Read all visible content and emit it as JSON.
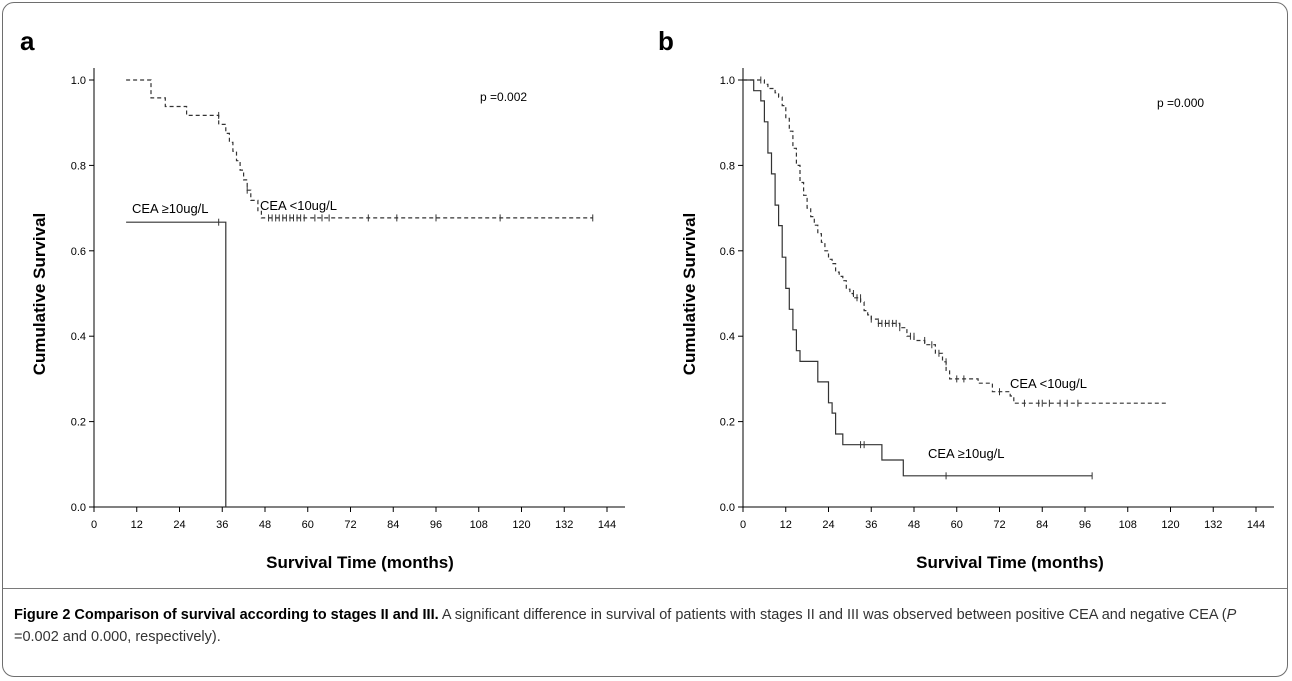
{
  "chart_data": [
    {
      "type": "line",
      "panel_label": "a",
      "annotation": "p =0.002",
      "xlabel": "Survival Time (months)",
      "ylabel": "Cumulative Survival",
      "xlim": [
        0,
        150
      ],
      "ylim": [
        0,
        1.05
      ],
      "xticks": [
        0,
        12,
        24,
        36,
        48,
        60,
        72,
        84,
        96,
        108,
        120,
        132,
        144
      ],
      "yticks": [
        "0.0",
        "0.2",
        "0.4",
        "0.6",
        "0.8",
        "1.0"
      ],
      "series": [
        {
          "name": "CEA <10ug/L",
          "style": "dashed",
          "points": [
            [
              9,
              1.0
            ],
            [
              16,
              1.0
            ],
            [
              16,
              0.958
            ],
            [
              20,
              0.958
            ],
            [
              20,
              0.938
            ],
            [
              26,
              0.938
            ],
            [
              26,
              0.917
            ],
            [
              35,
              0.917
            ],
            [
              35,
              0.896
            ],
            [
              37,
              0.896
            ],
            [
              37,
              0.875
            ],
            [
              38,
              0.875
            ],
            [
              38,
              0.854
            ],
            [
              39,
              0.854
            ],
            [
              39,
              0.833
            ],
            [
              40,
              0.833
            ],
            [
              40,
              0.811
            ],
            [
              41,
              0.811
            ],
            [
              41,
              0.789
            ],
            [
              42,
              0.789
            ],
            [
              42,
              0.766
            ],
            [
              43,
              0.766
            ],
            [
              43,
              0.742
            ],
            [
              44,
              0.742
            ],
            [
              44,
              0.718
            ],
            [
              46,
              0.718
            ],
            [
              46,
              0.694
            ],
            [
              47,
              0.694
            ],
            [
              47,
              0.677
            ],
            [
              140,
              0.677
            ]
          ],
          "censored": [
            [
              35,
              0.917
            ],
            [
              43,
              0.742
            ],
            [
              49,
              0.677
            ],
            [
              50,
              0.677
            ],
            [
              51,
              0.677
            ],
            [
              52,
              0.677
            ],
            [
              53,
              0.677
            ],
            [
              54,
              0.677
            ],
            [
              55,
              0.677
            ],
            [
              56,
              0.677
            ],
            [
              57,
              0.677
            ],
            [
              58,
              0.677
            ],
            [
              59,
              0.677
            ],
            [
              62,
              0.677
            ],
            [
              64,
              0.677
            ],
            [
              66,
              0.677
            ],
            [
              77,
              0.677
            ],
            [
              85,
              0.677
            ],
            [
              96,
              0.677
            ],
            [
              114,
              0.677
            ],
            [
              140,
              0.677
            ]
          ]
        },
        {
          "name": "CEA ≥10ug/L",
          "style": "solid",
          "points": [
            [
              9,
              0.667
            ],
            [
              37,
              0.667
            ],
            [
              37,
              0.0
            ]
          ],
          "censored": [
            [
              35,
              0.667
            ]
          ]
        }
      ]
    },
    {
      "type": "line",
      "panel_label": "b",
      "annotation": "p =0.000",
      "xlabel": "Survival Time (months)",
      "ylabel": "Cumulative Survival",
      "xlim": [
        0,
        150
      ],
      "ylim": [
        0,
        1.05
      ],
      "xticks": [
        0,
        12,
        24,
        36,
        48,
        60,
        72,
        84,
        96,
        108,
        120,
        132,
        144
      ],
      "yticks": [
        "0.0",
        "0.2",
        "0.4",
        "0.6",
        "0.8",
        "1.0"
      ],
      "series": [
        {
          "name": "CEA <10ug/L",
          "style": "dashed",
          "points": [
            [
              0,
              1.0
            ],
            [
              6,
              1.0
            ],
            [
              6,
              0.99
            ],
            [
              7,
              0.99
            ],
            [
              7,
              0.98
            ],
            [
              9,
              0.98
            ],
            [
              9,
              0.97
            ],
            [
              10,
              0.97
            ],
            [
              10,
              0.96
            ],
            [
              11,
              0.96
            ],
            [
              11,
              0.94
            ],
            [
              12,
              0.94
            ],
            [
              12,
              0.91
            ],
            [
              13,
              0.91
            ],
            [
              13,
              0.88
            ],
            [
              14,
              0.88
            ],
            [
              14,
              0.84
            ],
            [
              15,
              0.84
            ],
            [
              15,
              0.8
            ],
            [
              16,
              0.8
            ],
            [
              16,
              0.76
            ],
            [
              17,
              0.76
            ],
            [
              17,
              0.73
            ],
            [
              18,
              0.73
            ],
            [
              18,
              0.7
            ],
            [
              19,
              0.7
            ],
            [
              19,
              0.68
            ],
            [
              20,
              0.68
            ],
            [
              20,
              0.66
            ],
            [
              21,
              0.66
            ],
            [
              21,
              0.64
            ],
            [
              22,
              0.64
            ],
            [
              22,
              0.62
            ],
            [
              23,
              0.62
            ],
            [
              23,
              0.6
            ],
            [
              24,
              0.6
            ],
            [
              24,
              0.58
            ],
            [
              25,
              0.58
            ],
            [
              25,
              0.57
            ],
            [
              26,
              0.57
            ],
            [
              26,
              0.55
            ],
            [
              27,
              0.55
            ],
            [
              27,
              0.54
            ],
            [
              28,
              0.54
            ],
            [
              28,
              0.53
            ],
            [
              29,
              0.53
            ],
            [
              29,
              0.51
            ],
            [
              30,
              0.51
            ],
            [
              30,
              0.5
            ],
            [
              31,
              0.5
            ],
            [
              31,
              0.49
            ],
            [
              33,
              0.49
            ],
            [
              33,
              0.48
            ],
            [
              34,
              0.48
            ],
            [
              34,
              0.46
            ],
            [
              35,
              0.46
            ],
            [
              35,
              0.45
            ],
            [
              36,
              0.45
            ],
            [
              36,
              0.44
            ],
            [
              38,
              0.44
            ],
            [
              38,
              0.43
            ],
            [
              44,
              0.43
            ],
            [
              44,
              0.42
            ],
            [
              46,
              0.42
            ],
            [
              46,
              0.4
            ],
            [
              48,
              0.4
            ],
            [
              48,
              0.39
            ],
            [
              51,
              0.39
            ],
            [
              51,
              0.38
            ],
            [
              54,
              0.38
            ],
            [
              54,
              0.36
            ],
            [
              56,
              0.36
            ],
            [
              56,
              0.34
            ],
            [
              57,
              0.34
            ],
            [
              57,
              0.32
            ],
            [
              58,
              0.32
            ],
            [
              58,
              0.3
            ],
            [
              66,
              0.3
            ],
            [
              66,
              0.29
            ],
            [
              70,
              0.29
            ],
            [
              70,
              0.27
            ],
            [
              75,
              0.27
            ],
            [
              75,
              0.26
            ],
            [
              76,
              0.26
            ],
            [
              76,
              0.243
            ],
            [
              119,
              0.243
            ]
          ],
          "censored": [
            [
              5,
              1.0
            ],
            [
              31,
              0.5
            ],
            [
              32,
              0.49
            ],
            [
              33,
              0.49
            ],
            [
              36,
              0.44
            ],
            [
              38,
              0.43
            ],
            [
              39,
              0.43
            ],
            [
              40,
              0.43
            ],
            [
              41,
              0.43
            ],
            [
              42,
              0.43
            ],
            [
              43,
              0.43
            ],
            [
              44,
              0.42
            ],
            [
              47,
              0.4
            ],
            [
              48,
              0.4
            ],
            [
              51,
              0.39
            ],
            [
              53,
              0.38
            ],
            [
              55,
              0.36
            ],
            [
              57,
              0.34
            ],
            [
              60,
              0.3
            ],
            [
              62,
              0.3
            ],
            [
              72,
              0.27
            ],
            [
              79,
              0.243
            ],
            [
              83,
              0.243
            ],
            [
              84,
              0.243
            ],
            [
              86,
              0.243
            ],
            [
              89,
              0.243
            ],
            [
              91,
              0.243
            ],
            [
              94,
              0.243
            ]
          ]
        },
        {
          "name": "CEA ≥10ug/L",
          "style": "solid",
          "points": [
            [
              0,
              1.0
            ],
            [
              3,
              1.0
            ],
            [
              3,
              0.975
            ],
            [
              5,
              0.975
            ],
            [
              5,
              0.951
            ],
            [
              6,
              0.951
            ],
            [
              6,
              0.902
            ],
            [
              7,
              0.902
            ],
            [
              7,
              0.829
            ],
            [
              8,
              0.829
            ],
            [
              8,
              0.78
            ],
            [
              9,
              0.78
            ],
            [
              9,
              0.707
            ],
            [
              10,
              0.707
            ],
            [
              10,
              0.659
            ],
            [
              11,
              0.659
            ],
            [
              11,
              0.585
            ],
            [
              12,
              0.585
            ],
            [
              12,
              0.512
            ],
            [
              13,
              0.512
            ],
            [
              13,
              0.463
            ],
            [
              14,
              0.463
            ],
            [
              14,
              0.415
            ],
            [
              15,
              0.415
            ],
            [
              15,
              0.366
            ],
            [
              16,
              0.366
            ],
            [
              16,
              0.341
            ],
            [
              21,
              0.341
            ],
            [
              21,
              0.293
            ],
            [
              24,
              0.293
            ],
            [
              24,
              0.244
            ],
            [
              25,
              0.244
            ],
            [
              25,
              0.22
            ],
            [
              26,
              0.22
            ],
            [
              26,
              0.171
            ],
            [
              28,
              0.171
            ],
            [
              28,
              0.146
            ],
            [
              39,
              0.146
            ],
            [
              39,
              0.11
            ],
            [
              45,
              0.11
            ],
            [
              45,
              0.073
            ],
            [
              98,
              0.073
            ]
          ],
          "censored": [
            [
              33,
              0.146
            ],
            [
              34,
              0.146
            ],
            [
              57,
              0.073
            ],
            [
              98,
              0.073
            ]
          ]
        }
      ]
    }
  ],
  "caption": {
    "title": "Figure 2 Comparison of survival according to stages II and III.",
    "body_pre": " A significant difference in survival of patients with stages II and III was observed between positive CEA and negative CEA (",
    "italic_p": "P",
    "body_post": " =0.002 and 0.000, respectively)."
  }
}
